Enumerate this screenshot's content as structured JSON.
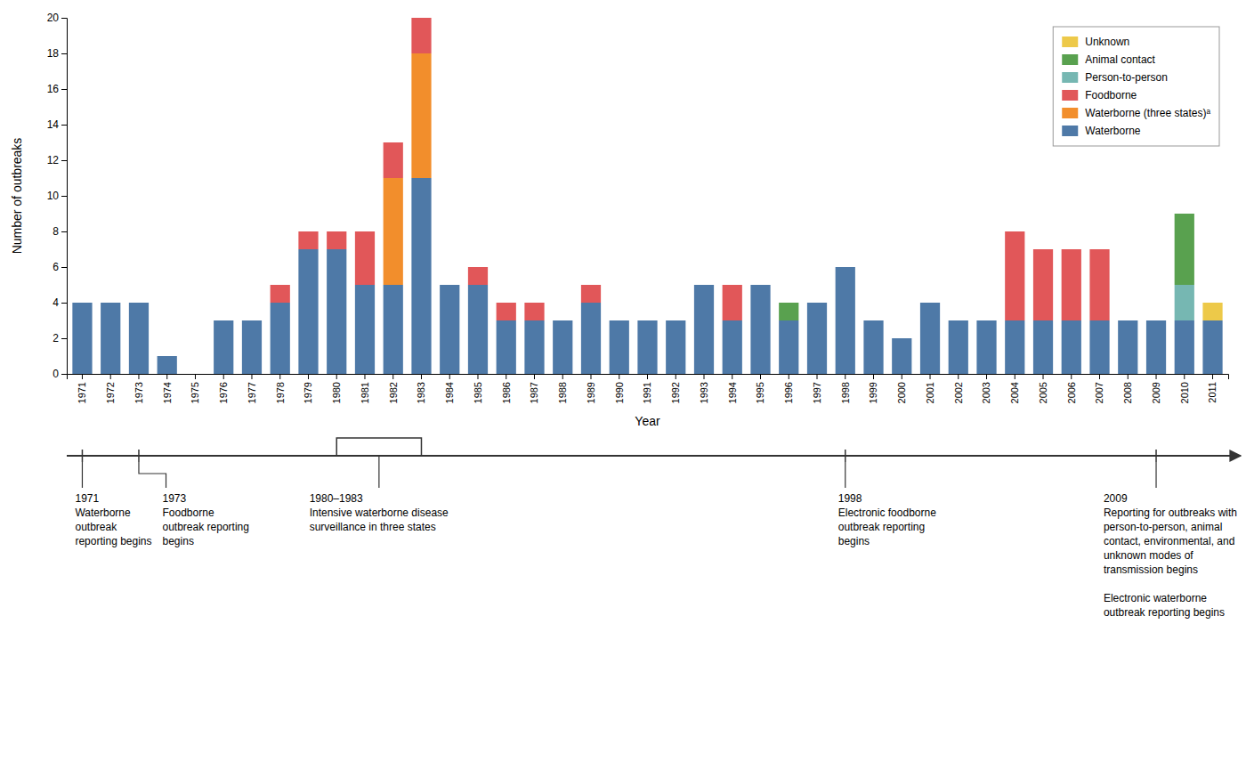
{
  "chart_data": {
    "type": "bar",
    "stacked": true,
    "grid": false,
    "legend": "upper right",
    "x_label": "Year",
    "y_label": "Number of outbreaks",
    "categories": [
      "1971",
      "1972",
      "1973",
      "1974",
      "1975",
      "1976",
      "1977",
      "1978",
      "1979",
      "1980",
      "1981",
      "1982",
      "1983",
      "1984",
      "1985",
      "1986",
      "1987",
      "1988",
      "1989",
      "1990",
      "1991",
      "1992",
      "1993",
      "1994",
      "1995",
      "1996",
      "1997",
      "1998",
      "1999",
      "2000",
      "2001",
      "2002",
      "2003",
      "2004",
      "2005",
      "2006",
      "2007",
      "2008",
      "2009",
      "2010",
      "2011"
    ],
    "series": [
      {
        "name": "Waterborne",
        "values": [
          4,
          4,
          4,
          1,
          0,
          3,
          3,
          4,
          7,
          7,
          5,
          5,
          11,
          5,
          5,
          3,
          3,
          3,
          4,
          3,
          3,
          3,
          5,
          3,
          5,
          3,
          4,
          6,
          3,
          2,
          4,
          3,
          3,
          3,
          3,
          3,
          3,
          3,
          3,
          3,
          3
        ]
      },
      {
        "name": "Waterborne (three states)ᵃ",
        "values": [
          0,
          0,
          0,
          0,
          0,
          0,
          0,
          0,
          0,
          0,
          0,
          6,
          7,
          0,
          0,
          0,
          0,
          0,
          0,
          0,
          0,
          0,
          0,
          0,
          0,
          0,
          0,
          0,
          0,
          0,
          0,
          0,
          0,
          0,
          0,
          0,
          0,
          0,
          0,
          0,
          0
        ]
      },
      {
        "name": "Foodborne",
        "values": [
          0,
          0,
          0,
          0,
          0,
          0,
          0,
          1,
          1,
          1,
          3,
          2,
          2,
          0,
          1,
          1,
          1,
          0,
          1,
          0,
          0,
          0,
          0,
          2,
          0,
          0,
          0,
          0,
          0,
          0,
          0,
          0,
          0,
          5,
          4,
          4,
          4,
          0,
          0,
          0,
          0
        ]
      },
      {
        "name": "Person-to-person",
        "values": [
          0,
          0,
          0,
          0,
          0,
          0,
          0,
          0,
          0,
          0,
          0,
          0,
          0,
          0,
          0,
          0,
          0,
          0,
          0,
          0,
          0,
          0,
          0,
          0,
          0,
          0,
          0,
          0,
          0,
          0,
          0,
          0,
          0,
          0,
          0,
          0,
          0,
          0,
          0,
          2,
          0
        ]
      },
      {
        "name": "Animal contact",
        "values": [
          0,
          0,
          0,
          0,
          0,
          0,
          0,
          0,
          0,
          0,
          0,
          0,
          0,
          0,
          0,
          0,
          0,
          0,
          0,
          0,
          0,
          0,
          0,
          0,
          0,
          1,
          0,
          0,
          0,
          0,
          0,
          0,
          0,
          0,
          0,
          0,
          0,
          0,
          0,
          4,
          0
        ]
      },
      {
        "name": "Unknown",
        "values": [
          0,
          0,
          0,
          0,
          0,
          0,
          0,
          0,
          0,
          0,
          0,
          0,
          0,
          0,
          0,
          0,
          0,
          0,
          0,
          0,
          0,
          0,
          0,
          0,
          0,
          0,
          0,
          0,
          0,
          0,
          0,
          0,
          0,
          0,
          0,
          0,
          0,
          0,
          0,
          0,
          1
        ]
      }
    ],
    "ylim": [
      0,
      20
    ],
    "yticks": [
      0,
      2,
      4,
      6,
      8,
      10,
      12,
      14,
      16,
      18,
      20
    ],
    "annotations": [
      {
        "x": "1971",
        "text": "1971\nWaterborne\noutbreak\nreporting begins"
      },
      {
        "x": "1973",
        "text": "1973\nFoodborne\noutbreak reporting\nbegins"
      },
      {
        "x": "1980",
        "x_end": "1983",
        "text": "1980–1983\nIntensive waterborne disease\nsurveillance in three states"
      },
      {
        "x": "1998",
        "text": "1998\nElectronic foodborne\noutbreak reporting\nbegins"
      },
      {
        "x": "2009",
        "text": "2009\nReporting for outbreaks with\nperson-to-person, animal\ncontact, environmental, and\nunknown modes of\ntransmission begins\n\nElectronic waterborne\noutbreak reporting begins"
      }
    ]
  }
}
